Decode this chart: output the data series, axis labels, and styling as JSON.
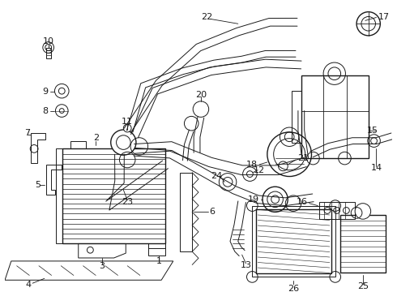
{
  "bg_color": "#ffffff",
  "line_color": "#1a1a1a",
  "lw_thin": 0.7,
  "lw_med": 1.0,
  "lw_thick": 1.4,
  "fig_w": 4.9,
  "fig_h": 3.6,
  "dpi": 100
}
